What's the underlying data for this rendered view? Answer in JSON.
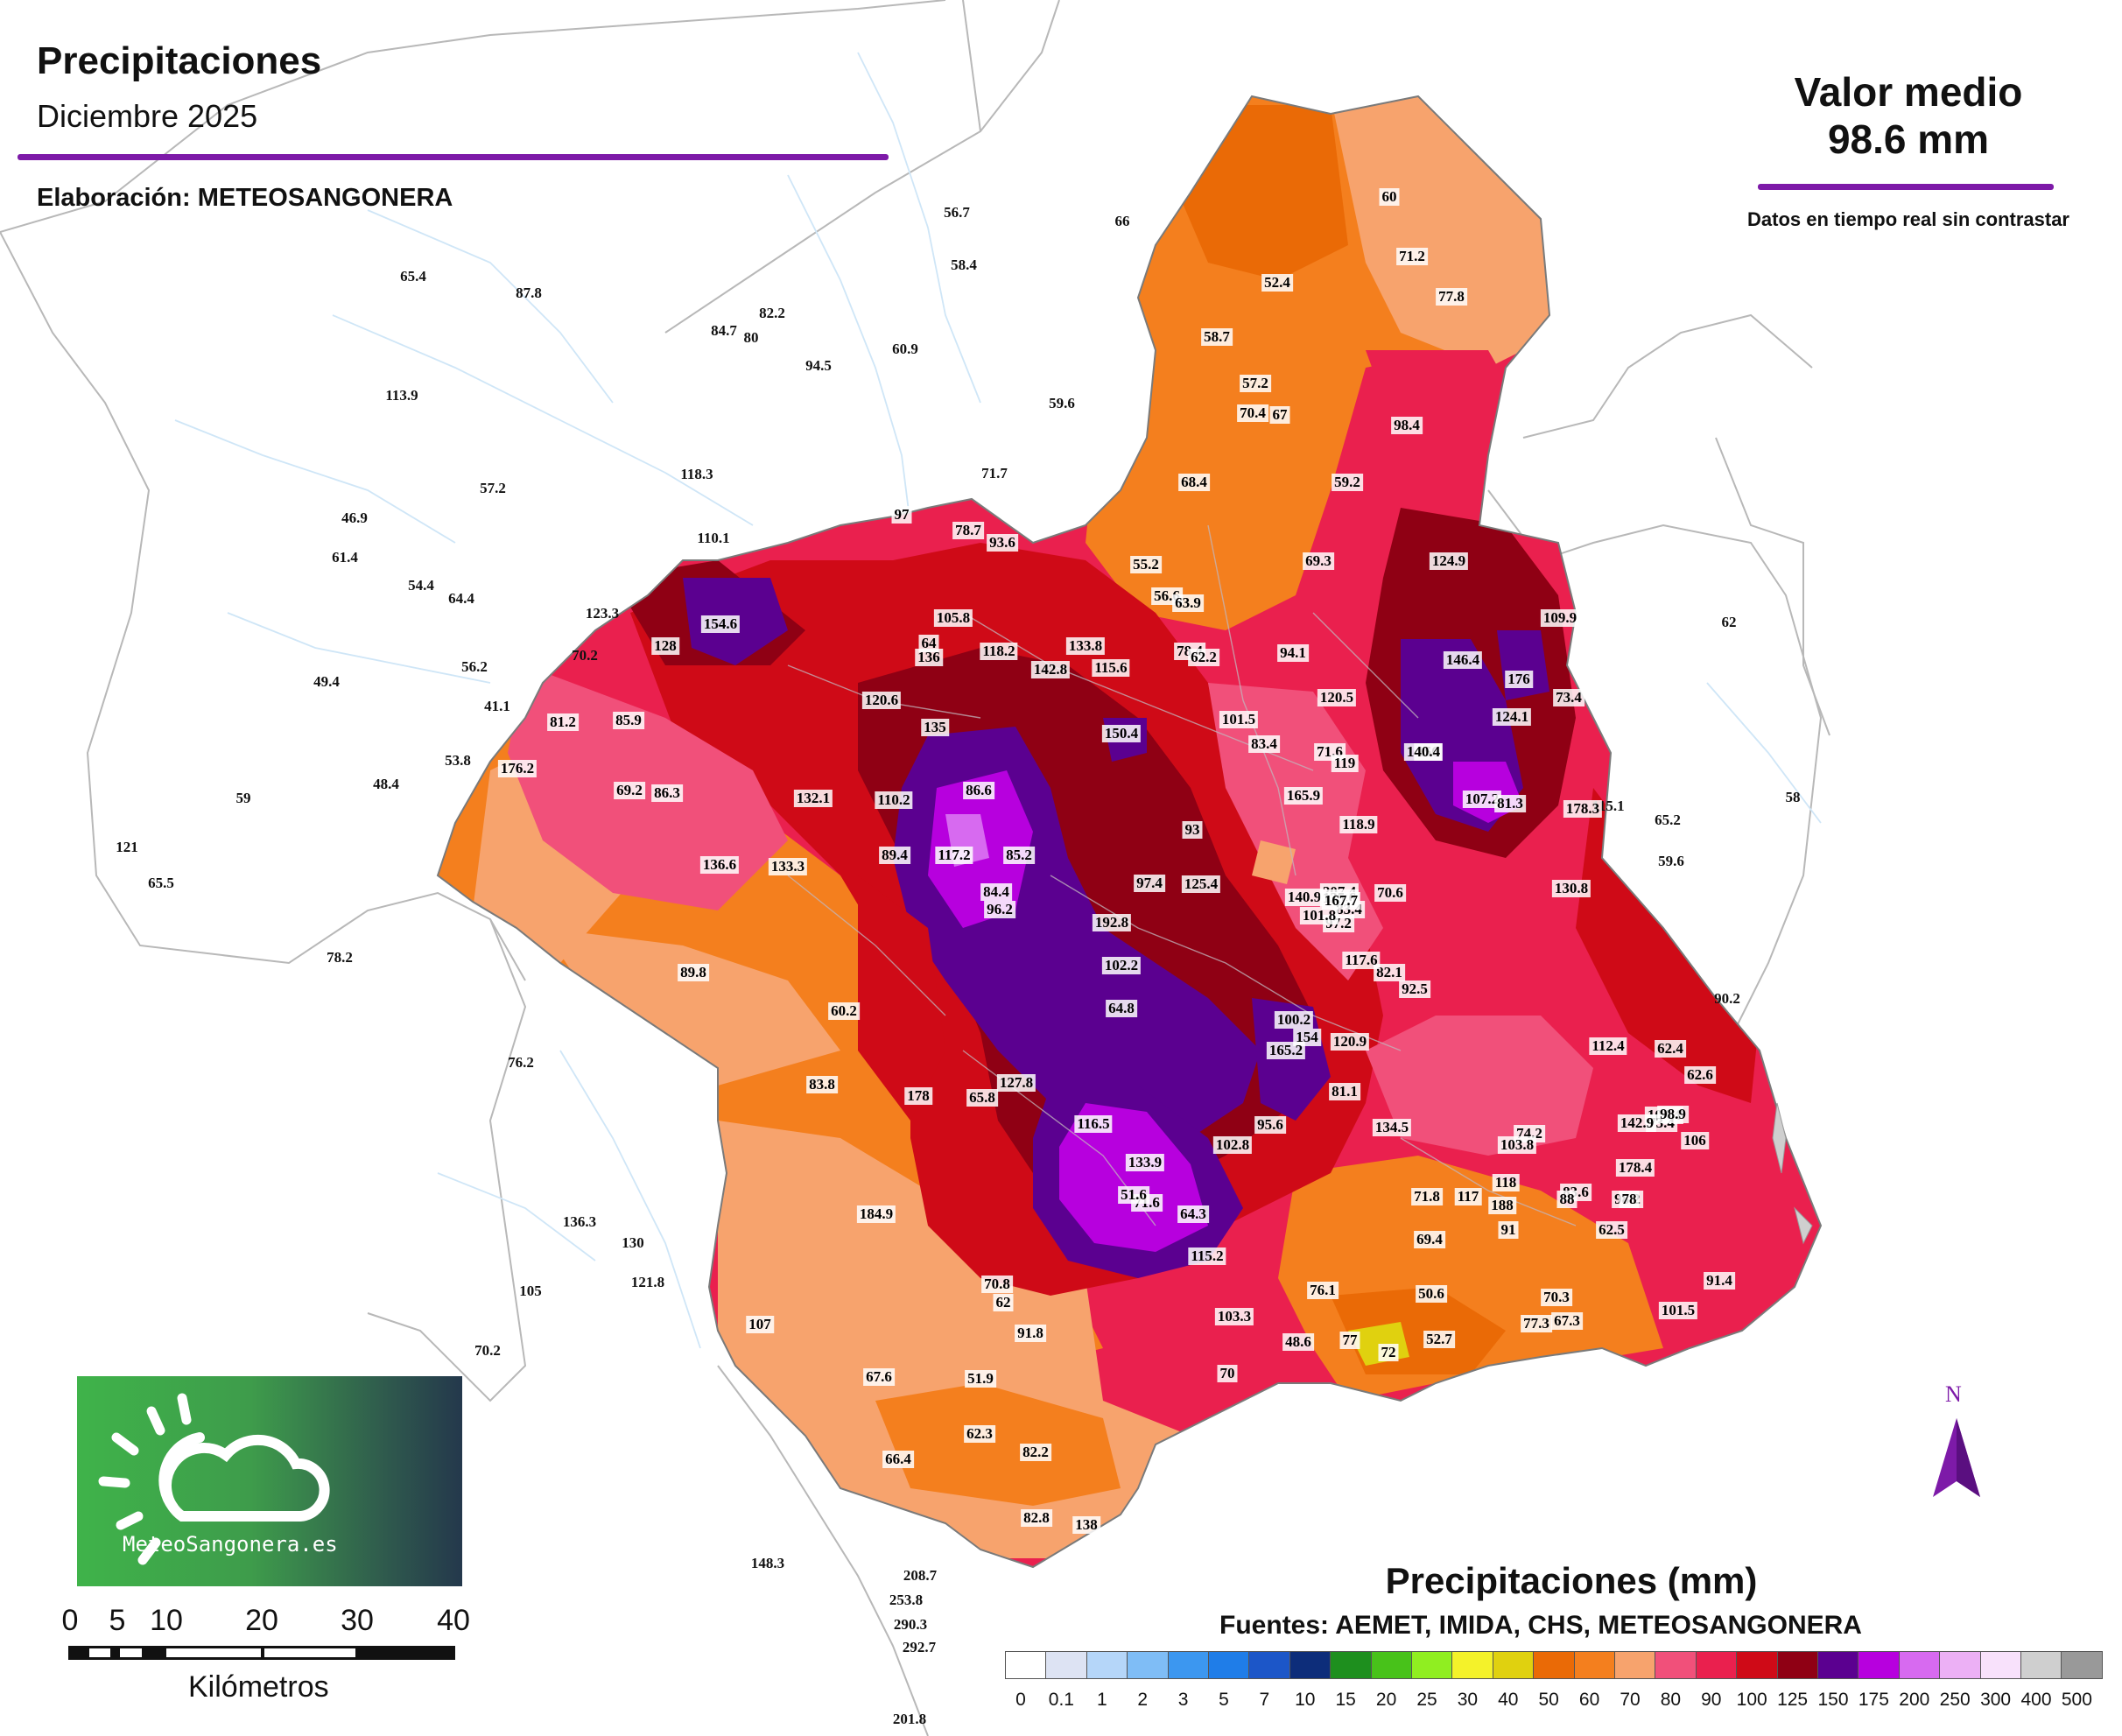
{
  "header": {
    "title": "Precipitaciones",
    "subtitle": "Diciembre 2025",
    "credit": "Elaboración: METEOSANGONERA"
  },
  "summary": {
    "mean_label": "Valor medio",
    "mean_value": "98.6 mm",
    "note": "Datos en tiempo real sin contrastar"
  },
  "legend": {
    "title": "Precipitaciones (mm)",
    "sources": "Fuentes: AEMET, IMIDA, CHS, METEOSANGONERA",
    "labels": [
      "0",
      "0.1",
      "1",
      "2",
      "3",
      "5",
      "7",
      "10",
      "15",
      "20",
      "25",
      "30",
      "40",
      "50",
      "60",
      "70",
      "80",
      "90",
      "100",
      "125",
      "150",
      "175",
      "200",
      "250",
      "300",
      "400",
      "500"
    ],
    "colors": [
      "#ffffff",
      "#dde3f3",
      "#b5d6f9",
      "#7fbdf6",
      "#3c97f0",
      "#1f7de8",
      "#1c56c8",
      "#0d2d7a",
      "#1e8f1e",
      "#48c21a",
      "#90ee21",
      "#f4f22a",
      "#e0d10f",
      "#ea6a06",
      "#f47f1e",
      "#f7a36d",
      "#f1507a",
      "#ea204e",
      "#cf0a17",
      "#8f0014",
      "#5b0090",
      "#b700de",
      "#d76af0",
      "#ecb0f5",
      "#f8e1fb",
      "#cfcfcf",
      "#999999"
    ]
  },
  "logo": {
    "text": "MeteoSangonera.es"
  },
  "scale_bar": {
    "labels": [
      "0",
      "5",
      "10",
      "20",
      "30",
      "40"
    ],
    "caption": "Kilómetros"
  },
  "north": {
    "label": "N"
  },
  "colors": {
    "accent": "#7d1aa8",
    "heavy": "#8f0014",
    "very_heavy": "#5b0090",
    "moderate": "#ea6a06",
    "light": "#f7a36d"
  },
  "stations_outside": [
    "56.7",
    "66",
    "65.4",
    "87.8",
    "82.2",
    "84.7",
    "80",
    "94.5",
    "60.9",
    "58.4",
    "113.9",
    "59.6",
    "118.3",
    "71.7",
    "57.2",
    "46.9",
    "61.4",
    "110.1",
    "54.4",
    "64.4",
    "123.3",
    "70.2",
    "56.2",
    "49.4",
    "41.1",
    "53.8",
    "48.4",
    "59",
    "121",
    "65.5",
    "78.2",
    "76.2",
    "62",
    "115.1",
    "65.2",
    "58",
    "59.6",
    "90.2",
    "136.3",
    "130",
    "121.8",
    "105",
    "70.2",
    "148.3",
    "208.7",
    "253.8",
    "290.3",
    "292.7",
    "201.8"
  ],
  "stations_inside": [
    "60",
    "71.2",
    "77.8",
    "52.4",
    "58.7",
    "57.2",
    "70.4",
    "67",
    "98.4",
    "59.2",
    "68.4",
    "97",
    "78.7",
    "93.6",
    "124.9",
    "55.2",
    "69.3",
    "56.6",
    "63.9",
    "109.9",
    "154.6",
    "105.8",
    "133.8",
    "146.4",
    "128",
    "64",
    "136",
    "118.2",
    "142.8",
    "115.6",
    "78.4",
    "62.2",
    "94.1",
    "176",
    "120.6",
    "120.5",
    "101.5",
    "73.4",
    "81.2",
    "85.9",
    "135",
    "150.4",
    "83.4",
    "124.1",
    "71.6",
    "156",
    "140.4",
    "176.2",
    "69.2",
    "86.3",
    "86.6",
    "165.9",
    "119",
    "107.2",
    "132.1",
    "110.2",
    "89.4",
    "118.9",
    "178.3",
    "93",
    "81.3",
    "136.6",
    "133.3",
    "117.2",
    "85.2",
    "84.4",
    "207.4",
    "130.8",
    "97.4",
    "125.4",
    "70.6",
    "140.9",
    "135.6",
    "83.4",
    "96.2",
    "192.8",
    "97.2",
    "102.2",
    "82.1",
    "101.8",
    "117.6",
    "167.7",
    "92.5",
    "89.8",
    "60.2",
    "64.8",
    "120.9",
    "100.2",
    "154",
    "165.2",
    "112.4",
    "127.8",
    "65.8",
    "178",
    "116.5",
    "102.8",
    "104.4",
    "62.4",
    "62.6",
    "73.4",
    "142.9",
    "83.8",
    "95.6",
    "74.2",
    "134.5",
    "81.1",
    "98.9",
    "103.8",
    "106",
    "133.9",
    "178.4",
    "83.6",
    "118",
    "188",
    "71.6",
    "71.8",
    "51.6",
    "117",
    "88",
    "98.2",
    "78",
    "184.9",
    "64.3",
    "69.4",
    "91",
    "62.5",
    "70.8",
    "115.2",
    "62",
    "91.4",
    "76.1",
    "50.6",
    "70.3",
    "107",
    "103.3",
    "77.3",
    "67.3",
    "101.5",
    "91.8",
    "77",
    "52.7",
    "48.6",
    "72",
    "67.6",
    "70",
    "51.9",
    "66.4",
    "62.3",
    "82.2",
    "82.8",
    "138"
  ]
}
